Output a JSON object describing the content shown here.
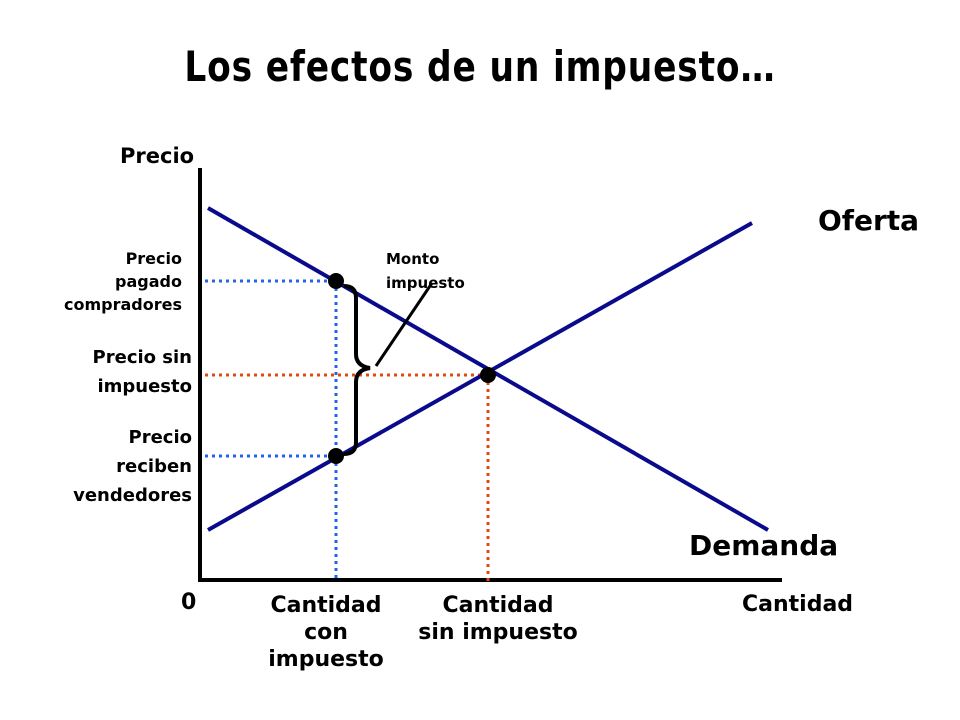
{
  "title": "Los efectos de un impuesto…",
  "axes": {
    "y_label": "Precio",
    "x_label": "Cantidad",
    "origin": "0"
  },
  "curves": {
    "supply": "Oferta",
    "demand": "Demanda"
  },
  "price_labels": {
    "buyers": [
      "Precio",
      "pagado",
      "compradores"
    ],
    "no_tax": [
      "Precio sin",
      "impuesto"
    ],
    "sellers": [
      "Precio",
      "reciben",
      "vendedores"
    ]
  },
  "tax_label": [
    "Monto",
    "impuesto"
  ],
  "quantity_labels": {
    "with_tax": [
      "Cantidad",
      "con",
      "impuesto"
    ],
    "without_tax": [
      "Cantidad",
      "sin impuesto"
    ]
  },
  "colors": {
    "curve": "#0a0a8c",
    "axis": "#000000",
    "tax_guides": "#2563eb",
    "equilibrium_guides": "#e04a10",
    "points": "#000000"
  }
}
